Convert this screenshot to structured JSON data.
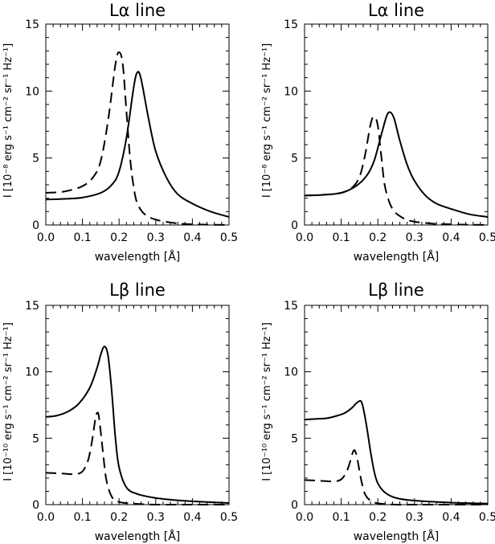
{
  "chart_data": [
    {
      "type": "line",
      "title": "Lα line",
      "xlabel": "wavelength [Å]",
      "ylabel": "I [10⁻⁸ erg s⁻¹ cm⁻² sr⁻¹ Hz⁻¹]",
      "xlim": [
        0,
        0.5
      ],
      "ylim": [
        0,
        15
      ],
      "xticks": [
        "0.0",
        "0.1",
        "0.2",
        "0.3",
        "0.4",
        "0.5"
      ],
      "yticks": [
        "0",
        "5",
        "10",
        "15"
      ],
      "series": [
        {
          "style": "solid",
          "x": [
            0,
            0.05,
            0.1,
            0.15,
            0.18,
            0.2,
            0.22,
            0.24,
            0.25,
            0.26,
            0.28,
            0.3,
            0.33,
            0.36,
            0.4,
            0.45,
            0.5
          ],
          "y": [
            1.9,
            1.95,
            2.05,
            2.4,
            3.0,
            4.0,
            6.5,
            10.3,
            11.4,
            10.9,
            8.0,
            5.5,
            3.5,
            2.3,
            1.6,
            1.0,
            0.6
          ]
        },
        {
          "style": "dashed",
          "x": [
            0,
            0.05,
            0.1,
            0.13,
            0.15,
            0.17,
            0.19,
            0.2,
            0.21,
            0.22,
            0.23,
            0.24,
            0.25,
            0.27,
            0.3,
            0.35,
            0.4,
            0.5
          ],
          "y": [
            2.4,
            2.5,
            2.9,
            3.6,
            4.8,
            7.8,
            12.0,
            12.9,
            12.0,
            8.5,
            5.0,
            2.8,
            1.6,
            0.8,
            0.4,
            0.15,
            0.05,
            0.0
          ]
        }
      ]
    },
    {
      "type": "line",
      "title": "Lα line",
      "xlabel": "wavelength [Å]",
      "ylabel": "I [10⁻⁸ erg s⁻¹ cm⁻² sr⁻¹ Hz⁻¹]",
      "xlim": [
        0,
        0.5
      ],
      "ylim": [
        0,
        15
      ],
      "xticks": [
        "0.0",
        "0.1",
        "0.2",
        "0.3",
        "0.4",
        "0.5"
      ],
      "yticks": [
        "0",
        "5",
        "10",
        "15"
      ],
      "series": [
        {
          "style": "solid",
          "x": [
            0,
            0.05,
            0.1,
            0.14,
            0.17,
            0.19,
            0.21,
            0.225,
            0.235,
            0.245,
            0.26,
            0.28,
            0.3,
            0.33,
            0.36,
            0.4,
            0.45,
            0.5
          ],
          "y": [
            2.2,
            2.25,
            2.4,
            2.9,
            3.7,
            4.8,
            6.8,
            8.2,
            8.4,
            7.9,
            6.3,
            4.5,
            3.3,
            2.2,
            1.6,
            1.2,
            0.8,
            0.6
          ]
        },
        {
          "style": "dashed",
          "x": [
            0,
            0.05,
            0.1,
            0.13,
            0.15,
            0.165,
            0.18,
            0.19,
            0.2,
            0.21,
            0.22,
            0.24,
            0.27,
            0.3,
            0.35,
            0.4,
            0.5
          ],
          "y": [
            2.2,
            2.25,
            2.4,
            2.8,
            3.6,
            5.2,
            7.5,
            8.1,
            7.4,
            5.0,
            2.8,
            1.2,
            0.5,
            0.25,
            0.1,
            0.05,
            0.0
          ]
        }
      ]
    },
    {
      "type": "line",
      "title": "Lβ line",
      "xlabel": "wavelength [Å]",
      "ylabel": "I [10⁻¹⁰ erg s⁻¹ cm⁻² sr⁻¹ Hz⁻¹]",
      "xlim": [
        0,
        0.5
      ],
      "ylim": [
        0,
        15
      ],
      "xticks": [
        "0.0",
        "0.1",
        "0.2",
        "0.3",
        "0.4",
        "0.5"
      ],
      "yticks": [
        "0",
        "5",
        "10",
        "15"
      ],
      "series": [
        {
          "style": "solid",
          "x": [
            0,
            0.03,
            0.06,
            0.09,
            0.12,
            0.14,
            0.15,
            0.16,
            0.17,
            0.18,
            0.19,
            0.2,
            0.22,
            0.25,
            0.3,
            0.35,
            0.4,
            0.5
          ],
          "y": [
            6.6,
            6.7,
            7.0,
            7.6,
            8.8,
            10.3,
            11.3,
            11.9,
            11.2,
            8.5,
            5.0,
            2.8,
            1.3,
            0.8,
            0.5,
            0.35,
            0.25,
            0.12
          ]
        },
        {
          "style": "dashed",
          "x": [
            0,
            0.04,
            0.08,
            0.1,
            0.115,
            0.125,
            0.135,
            0.14,
            0.145,
            0.155,
            0.165,
            0.18,
            0.2,
            0.25,
            0.3,
            0.4,
            0.5
          ],
          "y": [
            2.4,
            2.35,
            2.3,
            2.5,
            3.3,
            4.6,
            6.4,
            6.9,
            6.6,
            4.2,
            1.9,
            0.6,
            0.2,
            0.05,
            0.0,
            0.0,
            0.0
          ]
        }
      ]
    },
    {
      "type": "line",
      "title": "Lβ line",
      "xlabel": "wavelength [Å]",
      "ylabel": "I [10⁻¹⁰ erg s⁻¹ cm⁻² sr⁻¹ Hz⁻¹]",
      "xlim": [
        0,
        0.5
      ],
      "ylim": [
        0,
        15
      ],
      "xticks": [
        "0.0",
        "0.1",
        "0.2",
        "0.3",
        "0.4",
        "0.5"
      ],
      "yticks": [
        "0",
        "5",
        "10",
        "15"
      ],
      "series": [
        {
          "style": "solid",
          "x": [
            0,
            0.03,
            0.06,
            0.09,
            0.11,
            0.13,
            0.14,
            0.15,
            0.155,
            0.16,
            0.17,
            0.18,
            0.19,
            0.2,
            0.22,
            0.25,
            0.3,
            0.4,
            0.5
          ],
          "y": [
            6.4,
            6.45,
            6.5,
            6.7,
            6.9,
            7.3,
            7.6,
            7.8,
            7.75,
            7.3,
            5.8,
            4.0,
            2.5,
            1.6,
            0.9,
            0.5,
            0.3,
            0.15,
            0.08
          ]
        },
        {
          "style": "dashed",
          "x": [
            0,
            0.04,
            0.08,
            0.1,
            0.115,
            0.125,
            0.13,
            0.135,
            0.14,
            0.145,
            0.155,
            0.165,
            0.18,
            0.2,
            0.25,
            0.3,
            0.5
          ],
          "y": [
            1.85,
            1.8,
            1.75,
            1.9,
            2.5,
            3.3,
            3.8,
            4.1,
            3.9,
            3.3,
            1.8,
            0.8,
            0.3,
            0.1,
            0.0,
            0.0,
            0.0
          ]
        }
      ]
    }
  ]
}
